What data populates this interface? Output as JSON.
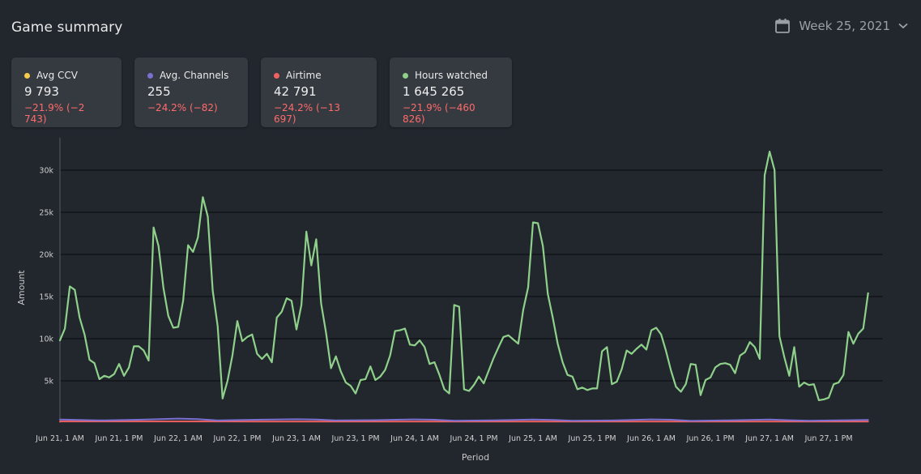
{
  "header": {
    "title": "Game summary",
    "week_label": "Week 25, 2021"
  },
  "cards": [
    {
      "label": "Avg CCV",
      "value": "9 793",
      "delta": "−21.9% (−2 743)",
      "color": "#f5c94a"
    },
    {
      "label": "Avg. Channels",
      "value": "255",
      "delta": "−24.2% (−82)",
      "color": "#7b6fd0"
    },
    {
      "label": "Airtime",
      "value": "42 791",
      "delta": "−24.2% (−13 697)",
      "color": "#f06262"
    },
    {
      "label": "Hours watched",
      "value": "1 645 265",
      "delta": "−21.9% (−460 826)",
      "color": "#8fd18a"
    }
  ],
  "colors": {
    "background": "#22272e",
    "card": "#353a40",
    "negative": "#ff6b6b",
    "grid": "#0e1114"
  },
  "chart_data": {
    "type": "line",
    "xlabel": "Period",
    "ylabel": "Amount",
    "x_range_hours": [
      0,
      167
    ],
    "ylim": [
      0,
      32500
    ],
    "y_ticks": [
      5000,
      10000,
      15000,
      20000,
      25000,
      30000
    ],
    "y_tick_labels": [
      "5k",
      "10k",
      "15k",
      "20k",
      "25k",
      "30k"
    ],
    "x_ticks": [
      {
        "hour": 0,
        "label": "Jun 21, 1 AM"
      },
      {
        "hour": 12,
        "label": "Jun 21, 1 PM"
      },
      {
        "hour": 24,
        "label": "Jun 22, 1 AM"
      },
      {
        "hour": 36,
        "label": "Jun 22, 1 PM"
      },
      {
        "hour": 48,
        "label": "Jun 23, 1 AM"
      },
      {
        "hour": 60,
        "label": "Jun 23, 1 PM"
      },
      {
        "hour": 72,
        "label": "Jun 24, 1 AM"
      },
      {
        "hour": 84,
        "label": "Jun 24, 1 PM"
      },
      {
        "hour": 96,
        "label": "Jun 25, 1 AM"
      },
      {
        "hour": 108,
        "label": "Jun 25, 1 PM"
      },
      {
        "hour": 120,
        "label": "Jun 26, 1 AM"
      },
      {
        "hour": 132,
        "label": "Jun 26, 1 PM"
      },
      {
        "hour": 144,
        "label": "Jun 27, 1 AM"
      },
      {
        "hour": 156,
        "label": "Jun 27, 1 PM"
      }
    ],
    "series": [
      {
        "name": "Hours watched",
        "color": "#8fd18a",
        "points": [
          [
            0,
            9800
          ],
          [
            1,
            11200
          ],
          [
            2,
            16200
          ],
          [
            3,
            15800
          ],
          [
            4,
            12500
          ],
          [
            5,
            10500
          ],
          [
            6,
            7500
          ],
          [
            7,
            7100
          ],
          [
            8,
            5200
          ],
          [
            9,
            5600
          ],
          [
            10,
            5400
          ],
          [
            11,
            5800
          ],
          [
            12,
            7000
          ],
          [
            13,
            5600
          ],
          [
            14,
            6600
          ],
          [
            15,
            9100
          ],
          [
            16,
            9100
          ],
          [
            17,
            8600
          ],
          [
            18,
            7400
          ],
          [
            19,
            23200
          ],
          [
            20,
            21000
          ],
          [
            21,
            16000
          ],
          [
            22,
            12700
          ],
          [
            23,
            11300
          ],
          [
            24,
            11400
          ],
          [
            25,
            14500
          ],
          [
            26,
            21100
          ],
          [
            27,
            20300
          ],
          [
            28,
            22000
          ],
          [
            29,
            26800
          ],
          [
            30,
            24500
          ],
          [
            31,
            15700
          ],
          [
            32,
            11500
          ],
          [
            33,
            2900
          ],
          [
            34,
            5000
          ],
          [
            35,
            8000
          ],
          [
            36,
            12100
          ],
          [
            37,
            9700
          ],
          [
            38,
            10200
          ],
          [
            39,
            10500
          ],
          [
            40,
            8200
          ],
          [
            41,
            7600
          ],
          [
            42,
            8200
          ],
          [
            43,
            7200
          ],
          [
            44,
            12500
          ],
          [
            45,
            13200
          ],
          [
            46,
            14800
          ],
          [
            47,
            14500
          ],
          [
            48,
            11100
          ],
          [
            49,
            14000
          ],
          [
            50,
            22700
          ],
          [
            51,
            18700
          ],
          [
            52,
            21800
          ],
          [
            53,
            14200
          ],
          [
            54,
            10700
          ],
          [
            55,
            6500
          ],
          [
            56,
            7900
          ],
          [
            57,
            6100
          ],
          [
            58,
            4800
          ],
          [
            59,
            4400
          ],
          [
            60,
            3500
          ],
          [
            61,
            5100
          ],
          [
            62,
            5200
          ],
          [
            63,
            6700
          ],
          [
            64,
            5100
          ],
          [
            65,
            5500
          ],
          [
            66,
            6300
          ],
          [
            67,
            8000
          ],
          [
            68,
            10900
          ],
          [
            69,
            11000
          ],
          [
            70,
            11200
          ],
          [
            71,
            9300
          ],
          [
            72,
            9200
          ],
          [
            73,
            9800
          ],
          [
            74,
            9000
          ],
          [
            75,
            7000
          ],
          [
            76,
            7200
          ],
          [
            77,
            5700
          ],
          [
            78,
            4000
          ],
          [
            79,
            3500
          ],
          [
            80,
            14000
          ],
          [
            81,
            13800
          ],
          [
            82,
            4000
          ],
          [
            83,
            3800
          ],
          [
            84,
            4500
          ],
          [
            85,
            5500
          ],
          [
            86,
            4700
          ],
          [
            87,
            6200
          ],
          [
            88,
            7700
          ],
          [
            89,
            9000
          ],
          [
            90,
            10200
          ],
          [
            91,
            10400
          ],
          [
            92,
            9900
          ],
          [
            93,
            9400
          ],
          [
            94,
            13400
          ],
          [
            95,
            16100
          ],
          [
            96,
            23800
          ],
          [
            97,
            23700
          ],
          [
            98,
            21000
          ],
          [
            99,
            15300
          ],
          [
            100,
            12500
          ],
          [
            101,
            9400
          ],
          [
            102,
            7200
          ],
          [
            103,
            5700
          ],
          [
            104,
            5500
          ],
          [
            105,
            4000
          ],
          [
            106,
            4200
          ],
          [
            107,
            3900
          ],
          [
            108,
            4100
          ],
          [
            109,
            4100
          ],
          [
            110,
            8500
          ],
          [
            111,
            9000
          ],
          [
            112,
            4600
          ],
          [
            113,
            4900
          ],
          [
            114,
            6400
          ],
          [
            115,
            8600
          ],
          [
            116,
            8200
          ],
          [
            117,
            8800
          ],
          [
            118,
            9300
          ],
          [
            119,
            8700
          ],
          [
            120,
            11000
          ],
          [
            121,
            11300
          ],
          [
            122,
            10500
          ],
          [
            123,
            8500
          ],
          [
            124,
            6200
          ],
          [
            125,
            4300
          ],
          [
            126,
            3700
          ],
          [
            127,
            4600
          ],
          [
            128,
            7000
          ],
          [
            129,
            6900
          ],
          [
            130,
            3300
          ],
          [
            131,
            5100
          ],
          [
            132,
            5400
          ],
          [
            133,
            6600
          ],
          [
            134,
            7000
          ],
          [
            135,
            7100
          ],
          [
            136,
            6900
          ],
          [
            137,
            5900
          ],
          [
            138,
            8000
          ],
          [
            139,
            8400
          ],
          [
            140,
            9600
          ],
          [
            141,
            9000
          ],
          [
            142,
            7600
          ],
          [
            143,
            29400
          ],
          [
            144,
            32200
          ],
          [
            145,
            30000
          ],
          [
            146,
            10300
          ],
          [
            147,
            7800
          ],
          [
            148,
            5600
          ],
          [
            149,
            9000
          ],
          [
            150,
            4300
          ],
          [
            151,
            4800
          ],
          [
            152,
            4500
          ],
          [
            153,
            4600
          ],
          [
            154,
            2700
          ],
          [
            155,
            2800
          ],
          [
            156,
            3000
          ],
          [
            157,
            4600
          ],
          [
            158,
            4800
          ],
          [
            159,
            5700
          ],
          [
            160,
            10800
          ],
          [
            161,
            9400
          ],
          [
            162,
            10600
          ],
          [
            163,
            11200
          ],
          [
            164,
            15400
          ]
        ]
      },
      {
        "name": "Avg. Channels",
        "color": "#7b6fd0",
        "points": [
          [
            0,
            400
          ],
          [
            8,
            300
          ],
          [
            16,
            380
          ],
          [
            24,
            520
          ],
          [
            28,
            450
          ],
          [
            32,
            300
          ],
          [
            40,
            380
          ],
          [
            48,
            440
          ],
          [
            52,
            400
          ],
          [
            56,
            300
          ],
          [
            64,
            340
          ],
          [
            72,
            420
          ],
          [
            76,
            380
          ],
          [
            80,
            260
          ],
          [
            88,
            320
          ],
          [
            96,
            400
          ],
          [
            100,
            360
          ],
          [
            104,
            260
          ],
          [
            112,
            300
          ],
          [
            120,
            420
          ],
          [
            124,
            380
          ],
          [
            128,
            250
          ],
          [
            136,
            320
          ],
          [
            144,
            400
          ],
          [
            148,
            330
          ],
          [
            152,
            260
          ],
          [
            160,
            330
          ],
          [
            164,
            360
          ]
        ]
      },
      {
        "name": "Airtime",
        "color": "#f06262",
        "points": [
          [
            0,
            180
          ],
          [
            40,
            170
          ],
          [
            80,
            160
          ],
          [
            120,
            170
          ],
          [
            164,
            175
          ]
        ]
      }
    ]
  }
}
